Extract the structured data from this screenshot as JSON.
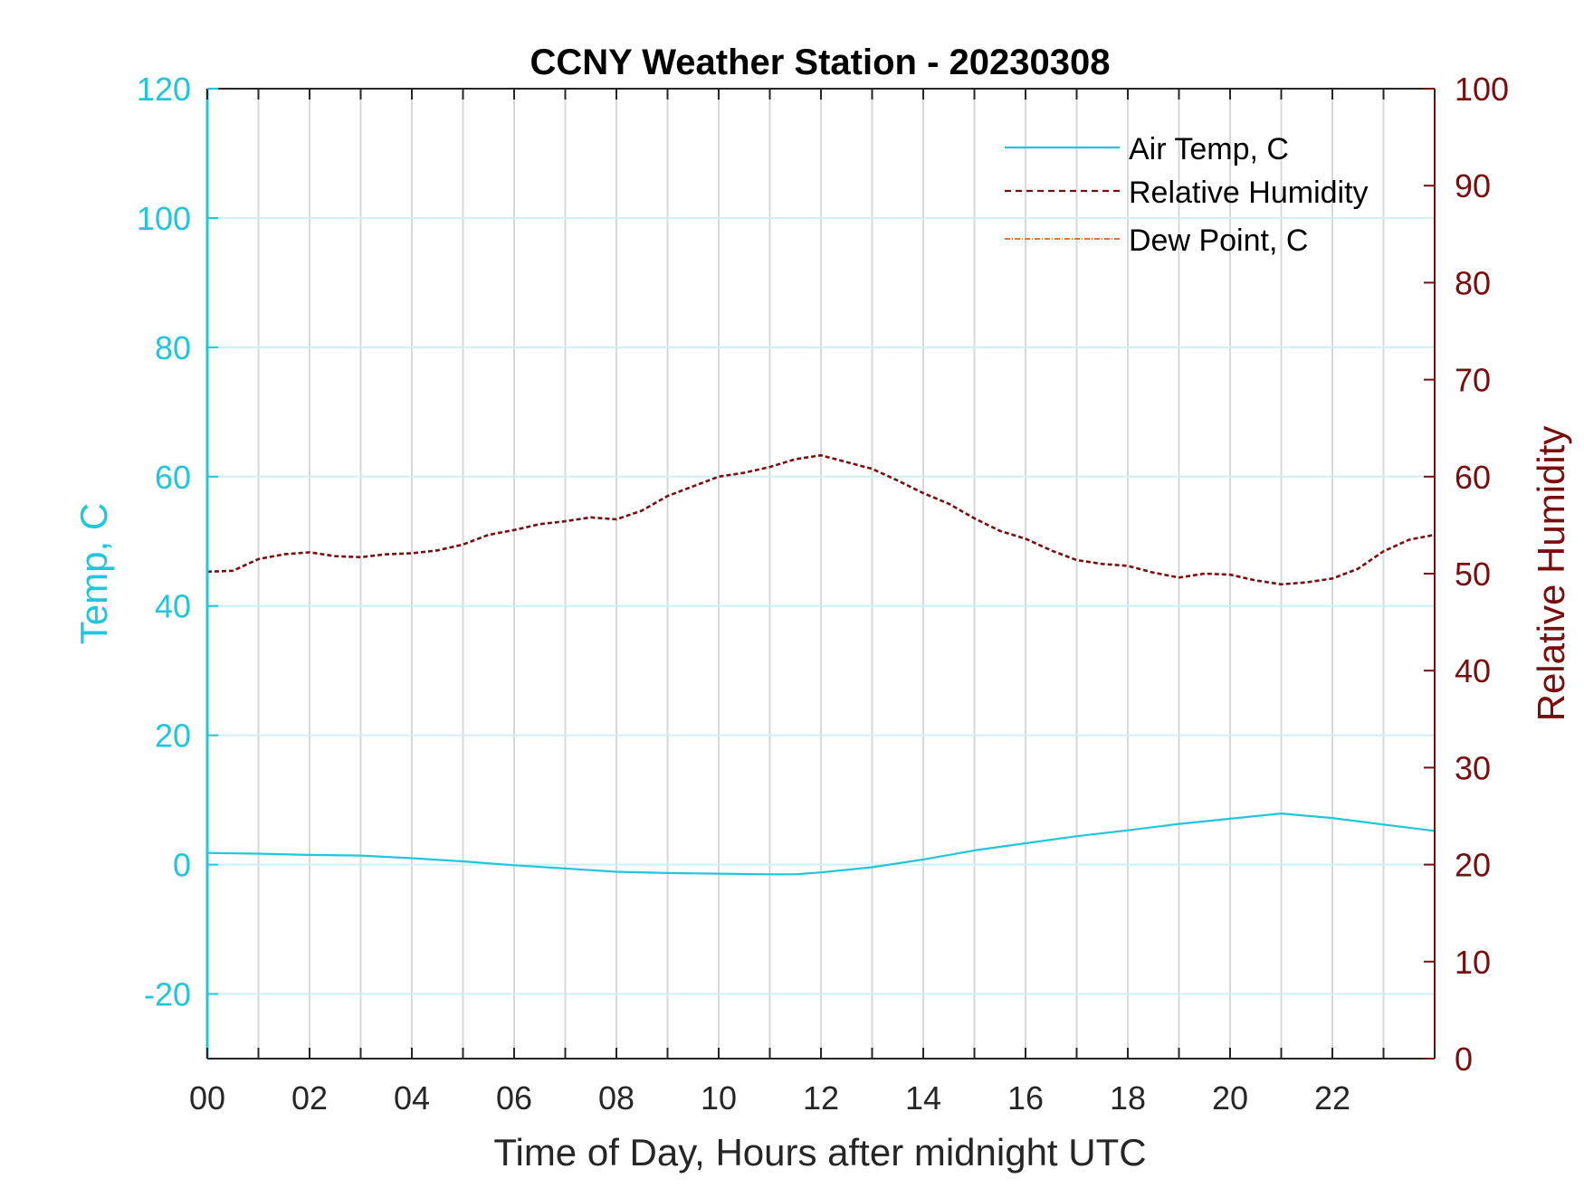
{
  "chart_data": {
    "type": "line",
    "title": "CCNY Weather Station - 20230308",
    "xlabel": "Time of Day, Hours after midnight UTC",
    "ylabel_left": "Temp, C",
    "ylabel_right": "Relative Humidity",
    "xlim": [
      0,
      24
    ],
    "ylim_left": [
      -30,
      120
    ],
    "ylim_right": [
      0,
      100
    ],
    "x_ticks": [
      "00",
      "02",
      "04",
      "06",
      "08",
      "10",
      "12",
      "14",
      "16",
      "18",
      "20",
      "22"
    ],
    "y_left_ticks": [
      "-20",
      "0",
      "20",
      "40",
      "60",
      "80",
      "100",
      "120"
    ],
    "y_right_ticks": [
      "0",
      "10",
      "20",
      "30",
      "40",
      "50",
      "60",
      "70",
      "80",
      "90",
      "100"
    ],
    "grid": true,
    "legend_position": "top-right",
    "colors": {
      "temp_axis": "#1fc6dc",
      "rh_axis": "#7a0e0e",
      "air_temp": "#1fc6dc",
      "rh": "#7a0e0e",
      "dew_point": "#e0641c",
      "grid": "#d6d9dc",
      "h_grid": "#cdf0f5"
    },
    "series": [
      {
        "name": "Air Temp, C",
        "axis": "left",
        "style": "solid",
        "x": [
          0,
          1,
          2,
          3,
          4,
          5,
          6,
          7,
          8,
          9,
          10,
          11,
          11.5,
          12,
          13,
          14,
          15,
          16,
          17,
          18,
          19,
          20,
          21,
          22,
          23,
          24
        ],
        "values": [
          1.8,
          1.7,
          1.5,
          1.4,
          1.0,
          0.5,
          -0.1,
          -0.6,
          -1.1,
          -1.3,
          -1.4,
          -1.5,
          -1.5,
          -1.2,
          -0.4,
          0.8,
          2.2,
          3.3,
          4.4,
          5.3,
          6.3,
          7.1,
          7.9,
          7.2,
          6.2,
          5.2
        ]
      },
      {
        "name": "Relative Humidity",
        "axis": "right",
        "style": "dashed",
        "x": [
          0,
          0.5,
          1,
          1.5,
          2,
          2.5,
          3,
          3.5,
          4,
          4.5,
          5,
          5.5,
          6,
          6.5,
          7,
          7.5,
          8,
          8.5,
          9,
          9.5,
          10,
          10.5,
          11,
          11.5,
          12,
          12.5,
          13,
          13.5,
          14,
          14.5,
          15,
          15.5,
          16,
          16.5,
          17,
          17.5,
          18,
          18.5,
          19,
          19.5,
          20,
          20.5,
          21,
          21.5,
          22,
          22.5,
          23,
          23.5,
          24
        ],
        "values": [
          50.2,
          50.3,
          51.5,
          52.0,
          52.2,
          51.8,
          51.7,
          52.0,
          52.1,
          52.4,
          53.0,
          54.0,
          54.5,
          55.1,
          55.4,
          55.8,
          55.6,
          56.5,
          58.0,
          59.0,
          60.0,
          60.4,
          61.0,
          61.8,
          62.2,
          61.5,
          60.8,
          59.6,
          58.3,
          57.2,
          55.7,
          54.4,
          53.6,
          52.4,
          51.4,
          51.0,
          50.8,
          50.1,
          49.6,
          50.0,
          49.9,
          49.3,
          48.9,
          49.1,
          49.5,
          50.5,
          52.3,
          53.5,
          54.0
        ]
      },
      {
        "name": "Dew Point, C",
        "axis": "left",
        "style": "dash-dot",
        "x": [],
        "values": []
      }
    ]
  }
}
